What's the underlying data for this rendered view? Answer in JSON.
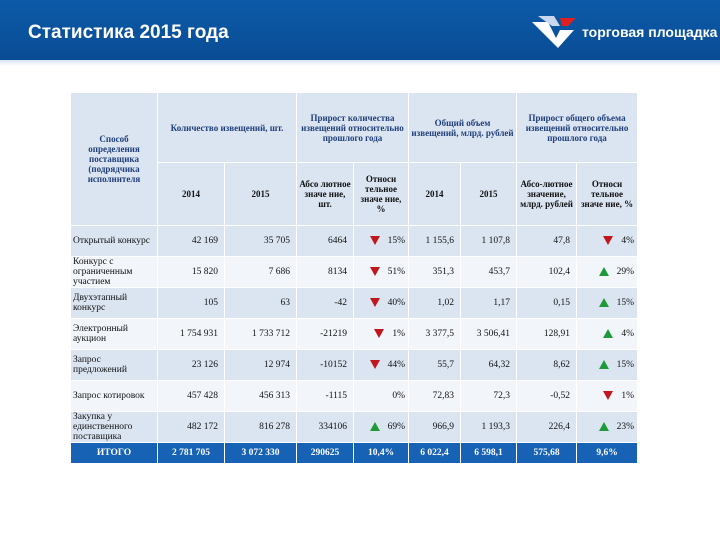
{
  "header": {
    "title": "Статистика 2015 года",
    "logo_text": "торговая площадка",
    "logo_icon": "wing-logo-icon"
  },
  "colors": {
    "header": "#0c5aa8",
    "row": "#dbe5f1",
    "total": "#1762b4",
    "up": "#1f9a3a",
    "down": "#c0161c"
  },
  "table": {
    "h_method": "Способ определения поставщика (подрядчика исполнителя",
    "h_count": "Количество извещений, шт.",
    "h_growth_count": "Прирост количества извещений относительно прошлого года",
    "h_volume": "Общий объем извещений, млрд. рублей",
    "h_growth_volume": "Прирост общего объема извещений относительно прошлого года",
    "h_2014": "2014",
    "h_2015": "2015",
    "h_abs_count": "Абсо лютное значе ние, шт.",
    "h_rel": "Относи тельное значе ние, %",
    "h_2014b": "2014",
    "h_2015b": "2015",
    "h_abs_volume": "Абсо-лютное значение, млрд. рублей",
    "h_rel2": "Относи тельное значе ние, %",
    "rows": [
      {
        "name": "Открытый конкурс",
        "c2014": "42 169",
        "c2015": "35 705",
        "abs": "6464",
        "dir1": "down",
        "rel": "15%",
        "v2014": "1 155,6",
        "v2015": "1 107,8",
        "vabs": "47,8",
        "dir2": "down",
        "vrel": "4%"
      },
      {
        "name": "Конкурс с ограниченным участием",
        "c2014": "15 820",
        "c2015": "7 686",
        "abs": "8134",
        "dir1": "down",
        "rel": "51%",
        "v2014": "351,3",
        "v2015": "453,7",
        "vabs": "102,4",
        "dir2": "up",
        "vrel": "29%"
      },
      {
        "name": "Двухэтапный конкурс",
        "c2014": "105",
        "c2015": "63",
        "abs": "-42",
        "dir1": "down",
        "rel": "40%",
        "v2014": "1,02",
        "v2015": "1,17",
        "vabs": "0,15",
        "dir2": "up",
        "vrel": "15%"
      },
      {
        "name": "Электронный аукцион",
        "c2014": "1 754 931",
        "c2015": "1 733 712",
        "abs": "-21219",
        "dir1": "down",
        "rel": "1%",
        "v2014": "3 377,5",
        "v2015": "3 506,41",
        "vabs": "128,91",
        "dir2": "up",
        "vrel": "4%"
      },
      {
        "name": "Запрос предложений",
        "c2014": "23 126",
        "c2015": "12 974",
        "abs": "-10152",
        "dir1": "down",
        "rel": "44%",
        "v2014": "55,7",
        "v2015": "64,32",
        "vabs": "8,62",
        "dir2": "up",
        "vrel": "15%"
      },
      {
        "name": "Запрос котировок",
        "c2014": "457 428",
        "c2015": "456 313",
        "abs": "-1115",
        "dir1": "",
        "rel": "0%",
        "v2014": "72,83",
        "v2015": "72,3",
        "vabs": "-0,52",
        "dir2": "down",
        "vrel": "1%"
      },
      {
        "name": "Закупка у единственного поставщика",
        "c2014": "482 172",
        "c2015": "816 278",
        "abs": "334106",
        "dir1": "up",
        "rel": "69%",
        "v2014": "966,9",
        "v2015": "1 193,3",
        "vabs": "226,4",
        "dir2": "up",
        "vrel": "23%"
      }
    ],
    "total": {
      "name": "ИТОГО",
      "c2014": "2 781 705",
      "c2015": "3 072 330",
      "abs": "290625",
      "rel": "10,4%",
      "v2014": "6 022,4",
      "v2015": "6 598,1",
      "vabs": "575,68",
      "vrel": "9,6%"
    }
  }
}
